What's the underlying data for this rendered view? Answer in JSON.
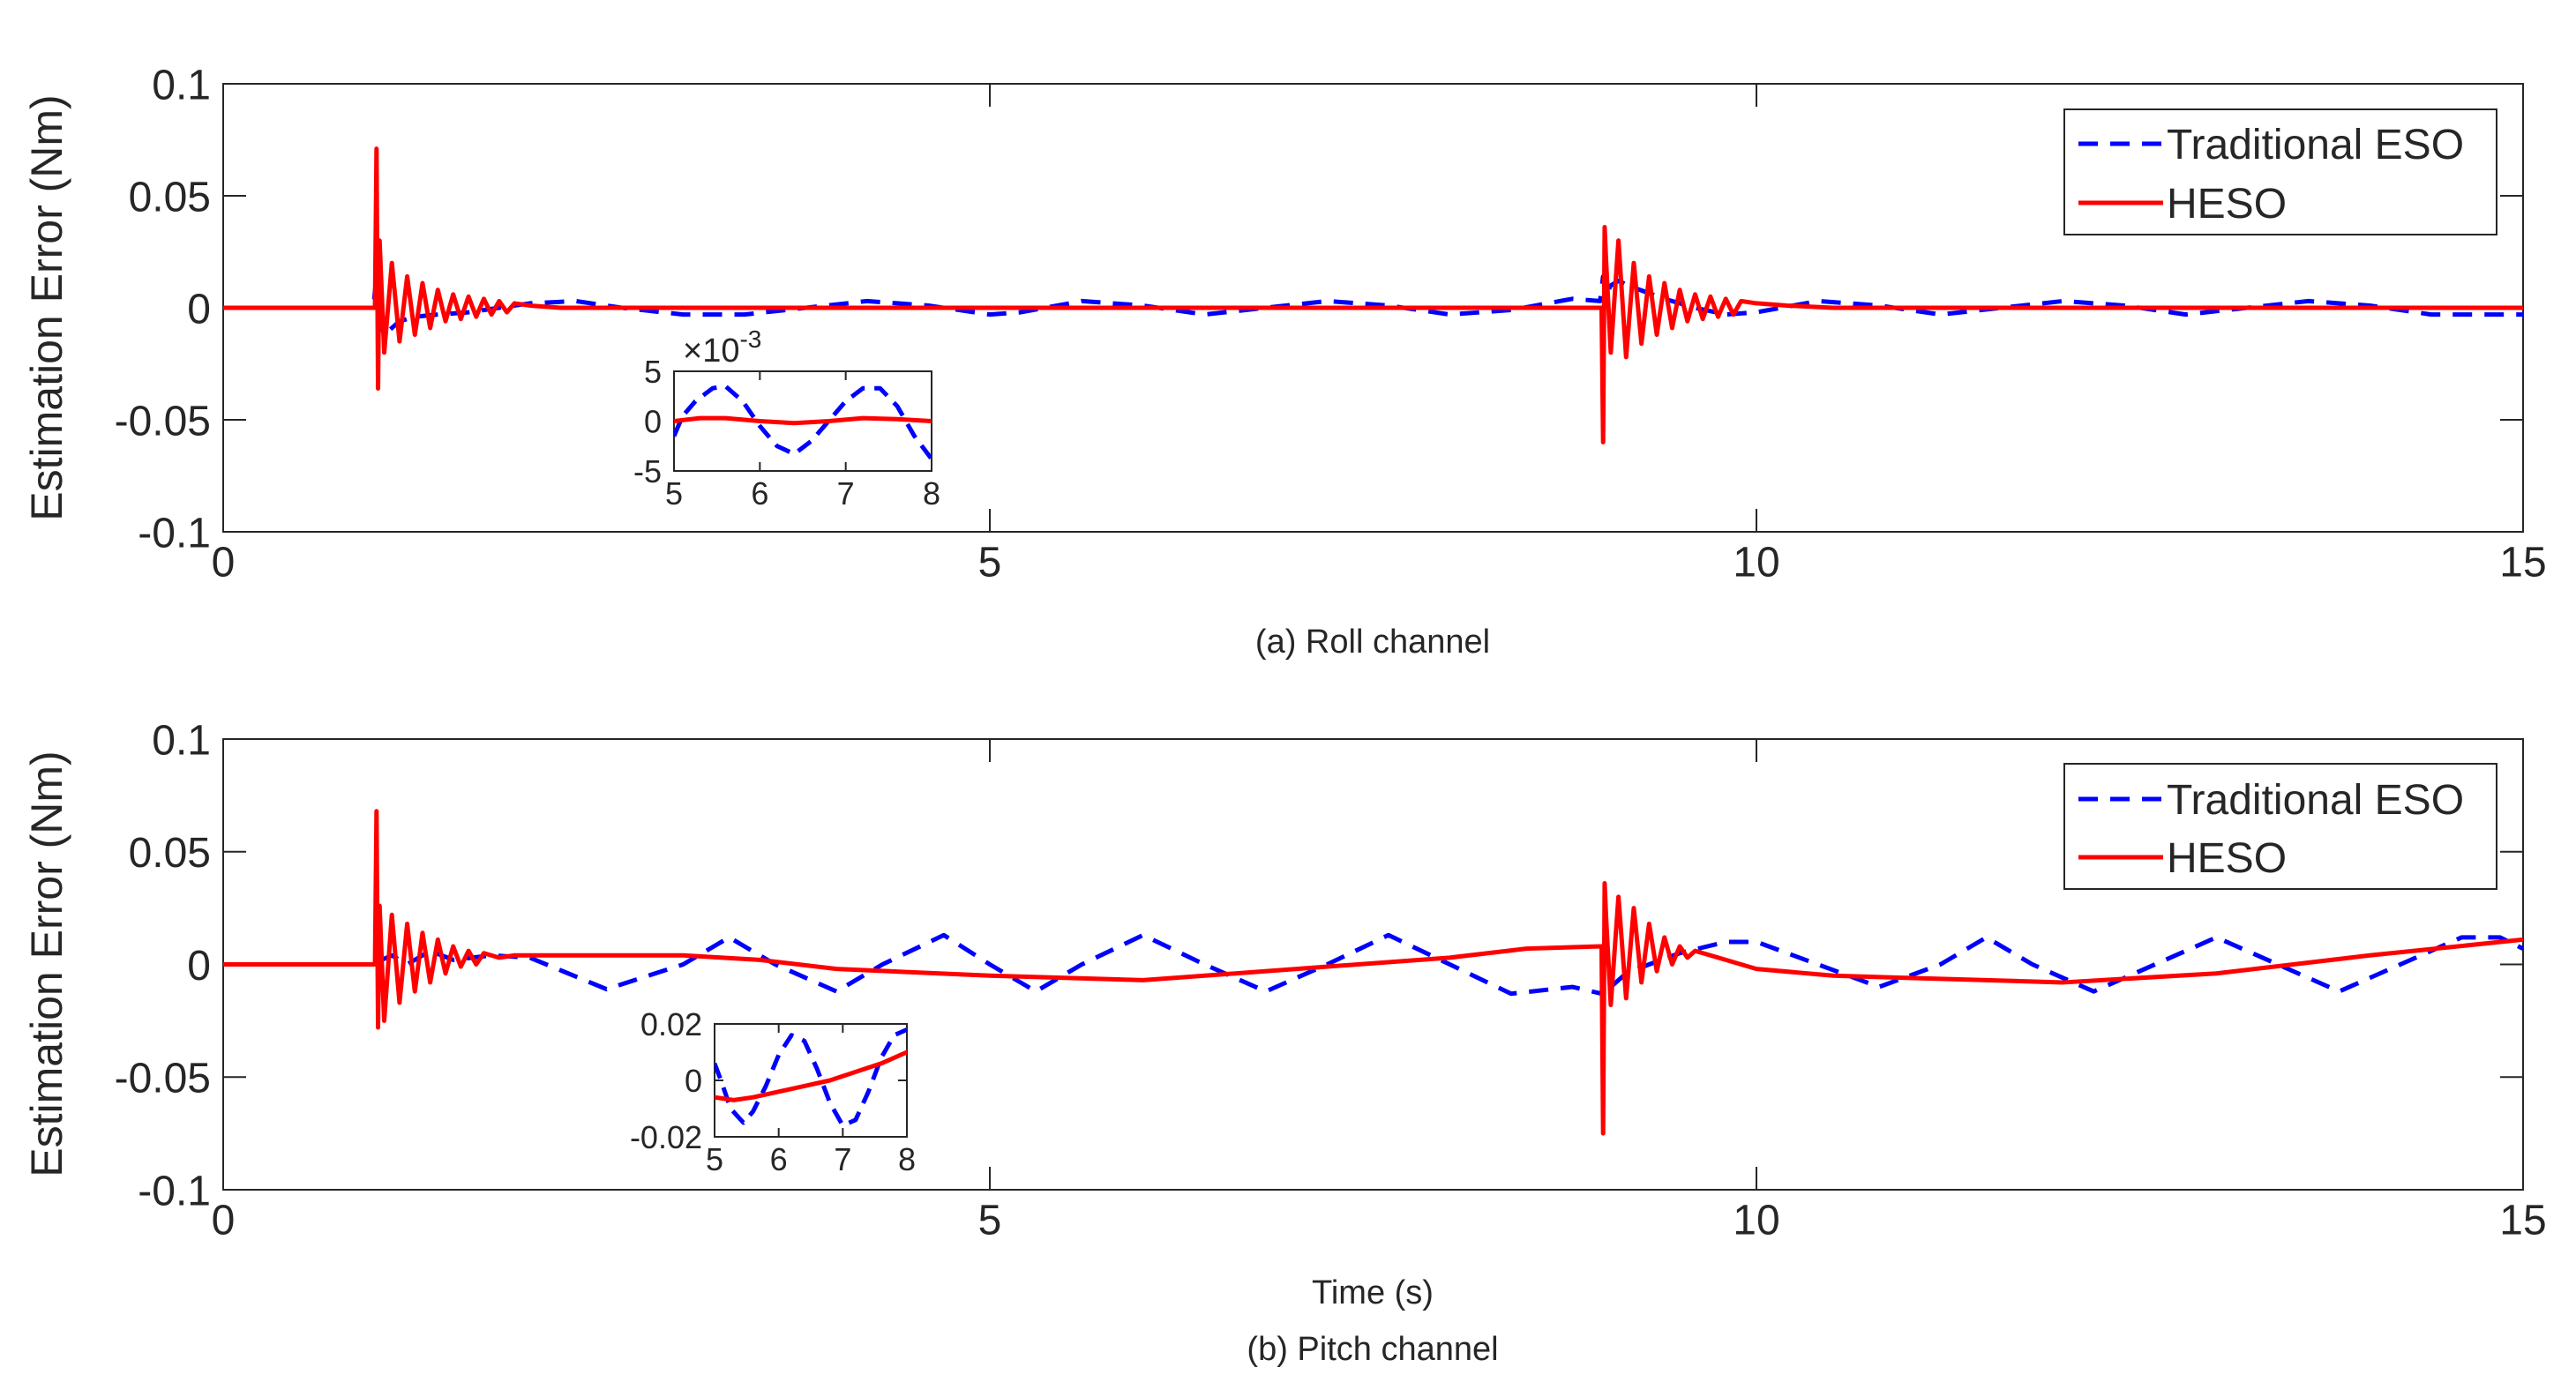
{
  "chart_data": [
    {
      "id": "roll",
      "type": "line",
      "caption": "(a) Roll channel",
      "xlabel": "",
      "ylabel": "Estimation Error (Nm)",
      "xlim": [
        0,
        15
      ],
      "ylim": [
        -0.1,
        0.1
      ],
      "xticks": [
        0,
        5,
        10,
        15
      ],
      "xtick_labels": [
        "0",
        "5",
        "10",
        "15"
      ],
      "yticks": [
        -0.1,
        -0.05,
        0,
        0.05,
        0.1
      ],
      "ytick_labels": [
        "-0.1",
        "-0.05",
        "0",
        "0.05",
        "0.1"
      ],
      "legend": {
        "location": "top-right"
      },
      "series": [
        {
          "name": "Traditional ESO",
          "color": "#0000ff",
          "style": "dashed",
          "x": [
            0,
            0.5,
            0.98,
            1.0,
            1.02,
            1.05,
            1.1,
            1.15,
            1.25,
            1.4,
            1.6,
            1.8,
            2.0,
            2.3,
            2.6,
            3.0,
            3.4,
            3.8,
            4.2,
            4.6,
            5.0,
            5.2,
            5.6,
            6.0,
            6.4,
            6.8,
            7.2,
            7.6,
            8.0,
            8.4,
            8.8,
            8.98,
            9.0,
            9.02,
            9.05,
            9.1,
            9.2,
            9.4,
            9.6,
            9.8,
            10.0,
            10.4,
            10.8,
            11.2,
            11.6,
            12.0,
            12.4,
            12.8,
            13.2,
            13.6,
            14.0,
            14.4,
            14.8,
            15.0
          ],
          "y": [
            0,
            0,
            0,
            0.015,
            -0.008,
            -0.012,
            -0.009,
            -0.006,
            -0.004,
            -0.003,
            -0.002,
            0.0,
            0.002,
            0.003,
            0.0,
            -0.003,
            -0.003,
            0.0,
            0.003,
            0.001,
            -0.003,
            -0.002,
            0.003,
            0.001,
            -0.003,
            0.0,
            0.003,
            0.001,
            -0.003,
            -0.001,
            0.004,
            0.003,
            0.014,
            0.006,
            0.01,
            0.012,
            0.009,
            0.004,
            0.0,
            -0.003,
            -0.002,
            0.003,
            0.001,
            -0.003,
            0.0,
            0.003,
            0.001,
            -0.003,
            0.0,
            0.003,
            0.001,
            -0.003,
            -0.003,
            -0.003
          ]
        },
        {
          "name": "HESO",
          "color": "#ff0000",
          "style": "solid",
          "x": [
            0,
            0.5,
            0.99,
            1.0,
            1.01,
            1.02,
            1.05,
            1.1,
            1.15,
            1.2,
            1.25,
            1.3,
            1.35,
            1.4,
            1.45,
            1.5,
            1.55,
            1.6,
            1.65,
            1.7,
            1.75,
            1.8,
            1.85,
            1.9,
            2.0,
            2.2,
            2.5,
            3.0,
            5.0,
            8.0,
            8.99,
            9.0,
            9.01,
            9.02,
            9.05,
            9.1,
            9.15,
            9.2,
            9.25,
            9.3,
            9.35,
            9.4,
            9.45,
            9.5,
            9.55,
            9.6,
            9.65,
            9.7,
            9.75,
            9.8,
            9.85,
            9.9,
            10.0,
            10.2,
            10.5,
            11.0,
            15.0
          ],
          "y": [
            0,
            0,
            0,
            0.071,
            -0.036,
            0.03,
            -0.02,
            0.02,
            -0.015,
            0.014,
            -0.012,
            0.011,
            -0.009,
            0.008,
            -0.006,
            0.006,
            -0.005,
            0.005,
            -0.004,
            0.004,
            -0.003,
            0.003,
            -0.002,
            0.002,
            0.001,
            0.0,
            0.0,
            0.0,
            0.0,
            0.0,
            0.0,
            -0.06,
            0.036,
            0.02,
            -0.02,
            0.03,
            -0.022,
            0.02,
            -0.016,
            0.014,
            -0.012,
            0.011,
            -0.009,
            0.008,
            -0.006,
            0.006,
            -0.005,
            0.005,
            -0.004,
            0.004,
            -0.003,
            0.003,
            0.002,
            0.001,
            0.0,
            0.0,
            0.0
          ]
        }
      ],
      "inset": {
        "xlim": [
          5,
          8
        ],
        "ylim": [
          -5,
          5
        ],
        "xticks": [
          5,
          6,
          7,
          8
        ],
        "xtick_labels": [
          "5",
          "6",
          "7",
          "8"
        ],
        "yticks": [
          -5,
          0,
          5
        ],
        "ytick_labels": [
          "-5",
          "0",
          "5"
        ],
        "exponent_label": "×10",
        "exponent_power": "-3",
        "series": [
          {
            "name": "Traditional ESO",
            "color": "#0000ff",
            "style": "dashed",
            "x": [
              5.0,
              5.1,
              5.25,
              5.45,
              5.6,
              5.8,
              6.0,
              6.2,
              6.4,
              6.6,
              6.8,
              7.0,
              7.2,
              7.4,
              7.6,
              7.8,
              8.0
            ],
            "y": [
              -1.5,
              0.5,
              2.0,
              3.3,
              3.5,
              2.0,
              -0.5,
              -2.5,
              -3.3,
              -2.0,
              0.0,
              2.0,
              3.3,
              3.3,
              1.5,
              -1.5,
              -3.8
            ]
          },
          {
            "name": "HESO",
            "color": "#ff0000",
            "style": "solid",
            "x": [
              5.0,
              5.3,
              5.6,
              6.0,
              6.4,
              6.8,
              7.2,
              7.6,
              8.0
            ],
            "y": [
              0.0,
              0.3,
              0.3,
              0.0,
              -0.2,
              0.0,
              0.3,
              0.2,
              0.0
            ]
          }
        ]
      }
    },
    {
      "id": "pitch",
      "type": "line",
      "caption": "(b) Pitch channel",
      "xlabel": "Time (s)",
      "ylabel": "Estimation Error (Nm)",
      "xlim": [
        0,
        15
      ],
      "ylim": [
        -0.1,
        0.1
      ],
      "xticks": [
        0,
        5,
        10,
        15
      ],
      "xtick_labels": [
        "0",
        "5",
        "10",
        "15"
      ],
      "yticks": [
        -0.1,
        -0.05,
        0,
        0.05,
        0.1
      ],
      "ytick_labels": [
        "-0.1",
        "-0.05",
        "0",
        "0.05",
        "0.1"
      ],
      "legend": {
        "location": "top-right"
      },
      "series": [
        {
          "name": "Traditional ESO",
          "color": "#0000ff",
          "style": "dashed",
          "x": [
            0,
            0.5,
            0.99,
            1.0,
            1.1,
            1.2,
            1.35,
            1.5,
            1.75,
            2.0,
            2.5,
            3.0,
            3.3,
            3.6,
            4.0,
            4.3,
            4.7,
            5.0,
            5.3,
            5.6,
            6.0,
            6.4,
            6.8,
            7.2,
            7.6,
            8.0,
            8.4,
            8.8,
            8.99,
            9.0,
            9.05,
            9.15,
            9.3,
            9.5,
            9.8,
            10.0,
            10.4,
            10.8,
            11.2,
            11.5,
            11.8,
            12.2,
            12.6,
            13.0,
            13.4,
            13.8,
            14.2,
            14.6,
            14.85,
            15.0
          ],
          "y": [
            0,
            0,
            0,
            0.001,
            0.004,
            0.0,
            0.006,
            0.002,
            0.004,
            0.003,
            -0.011,
            0.0,
            0.012,
            0.0,
            -0.012,
            0.0,
            0.013,
            0.0,
            -0.012,
            0.0,
            0.013,
            0.0,
            -0.012,
            0.0,
            0.013,
            0.0,
            -0.013,
            -0.01,
            -0.013,
            -0.008,
            -0.01,
            -0.004,
            0.0,
            0.005,
            0.01,
            0.01,
            0.0,
            -0.01,
            0.0,
            0.012,
            0.0,
            -0.012,
            0.0,
            0.012,
            0.0,
            -0.012,
            0.0,
            0.012,
            0.012,
            0.007
          ]
        },
        {
          "name": "HESO",
          "color": "#ff0000",
          "style": "solid",
          "x": [
            0,
            0.5,
            0.99,
            1.0,
            1.01,
            1.02,
            1.05,
            1.1,
            1.15,
            1.2,
            1.25,
            1.3,
            1.35,
            1.4,
            1.45,
            1.5,
            1.55,
            1.6,
            1.65,
            1.7,
            1.8,
            1.9,
            2.0,
            2.5,
            3.0,
            3.5,
            4.0,
            5.0,
            6.0,
            7.0,
            8.0,
            8.5,
            8.99,
            9.0,
            9.01,
            9.02,
            9.05,
            9.1,
            9.15,
            9.2,
            9.25,
            9.3,
            9.35,
            9.4,
            9.45,
            9.5,
            9.55,
            9.6,
            9.7,
            9.8,
            9.9,
            10.0,
            10.5,
            11.0,
            12.0,
            13.0,
            14.0,
            15.0
          ],
          "y": [
            0,
            0,
            0,
            0.068,
            -0.028,
            0.026,
            -0.025,
            0.022,
            -0.017,
            0.018,
            -0.012,
            0.014,
            -0.008,
            0.011,
            -0.004,
            0.008,
            -0.001,
            0.006,
            0.0,
            0.005,
            0.003,
            0.004,
            0.004,
            0.004,
            0.004,
            0.002,
            -0.002,
            -0.005,
            -0.007,
            -0.002,
            0.003,
            0.007,
            0.008,
            -0.075,
            0.036,
            0.02,
            -0.018,
            0.03,
            -0.015,
            0.025,
            -0.008,
            0.018,
            -0.003,
            0.012,
            0.0,
            0.008,
            0.003,
            0.006,
            0.004,
            0.002,
            0.0,
            -0.002,
            -0.005,
            -0.006,
            -0.008,
            -0.004,
            0.004,
            0.011
          ]
        }
      ],
      "inset": {
        "xlim": [
          5,
          8
        ],
        "ylim": [
          -0.02,
          0.02
        ],
        "xticks": [
          5,
          6,
          7,
          8
        ],
        "xtick_labels": [
          "5",
          "6",
          "7",
          "8"
        ],
        "yticks": [
          -0.02,
          0,
          0.02
        ],
        "ytick_labels": [
          "-0.02",
          "0",
          "0.02"
        ],
        "exponent_label": "",
        "exponent_power": "",
        "series": [
          {
            "name": "Traditional ESO",
            "color": "#0000ff",
            "style": "dashed",
            "x": [
              5.0,
              5.1,
              5.25,
              5.45,
              5.6,
              5.8,
              6.0,
              6.2,
              6.4,
              6.6,
              6.8,
              7.0,
              7.2,
              7.4,
              7.6,
              7.8,
              8.0
            ],
            "y": [
              0.006,
              0.0,
              -0.01,
              -0.015,
              -0.011,
              -0.002,
              0.009,
              0.016,
              0.014,
              0.004,
              -0.008,
              -0.016,
              -0.014,
              -0.004,
              0.008,
              0.016,
              0.018
            ]
          },
          {
            "name": "HESO",
            "color": "#ff0000",
            "style": "solid",
            "x": [
              5.0,
              5.3,
              5.6,
              6.0,
              6.4,
              6.8,
              7.2,
              7.6,
              8.0
            ],
            "y": [
              -0.006,
              -0.007,
              -0.006,
              -0.004,
              -0.002,
              0.0,
              0.003,
              0.006,
              0.01
            ]
          }
        ]
      }
    }
  ]
}
